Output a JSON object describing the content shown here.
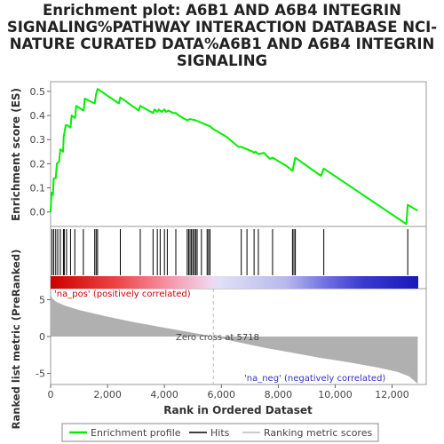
{
  "title_lines": [
    "Enrichment plot: A6B1 AND A6B4 INTEGRIN",
    "SIGNALING%PATHWAY INTERACTION DATABASE NCI-",
    "NATURE CURATED DATA%A6B1 AND A6B4 INTEGRIN",
    "SIGNALING"
  ],
  "colors": {
    "enrichment_line": "#00ee00",
    "hits": "#000000",
    "metric_fill": "#b0b0b0",
    "zero_cross_line": "#bbbbbb",
    "pos_label": "#cc0000",
    "neg_label": "#3333cc"
  },
  "chart_data": [
    {
      "type": "line",
      "name": "enrichment-score-panel",
      "ylabel": "Enrichment score (ES)",
      "xlim": [
        0,
        13200
      ],
      "ylim": [
        -0.06,
        0.54
      ],
      "yticks": [
        0.0,
        0.1,
        0.2,
        0.3,
        0.4,
        0.5
      ],
      "ytick_labels": [
        "0.0",
        "0.1",
        "0.2",
        "0.3",
        "0.4",
        "0.5"
      ],
      "grid": false,
      "series": [
        {
          "name": "Enrichment profile",
          "x": [
            0,
            30,
            80,
            110,
            180,
            220,
            300,
            340,
            440,
            460,
            530,
            580,
            700,
            740,
            860,
            900,
            1160,
            1200,
            1550,
            1600,
            1650,
            2400,
            2450,
            3100,
            3150,
            3600,
            3650,
            3750,
            3800,
            3900,
            4000,
            4050,
            4150,
            4300,
            4400,
            4500,
            4800,
            4900,
            5100,
            5300,
            5500,
            5600,
            5700,
            6200,
            6600,
            6700,
            6900,
            7100,
            7150,
            7200,
            7300,
            7500,
            7700,
            7800,
            8300,
            8500,
            8550,
            8600,
            9500,
            9600,
            12500,
            12550,
            12900
          ],
          "y": [
            0.0,
            0.08,
            0.07,
            0.14,
            0.14,
            0.2,
            0.21,
            0.26,
            0.25,
            0.31,
            0.36,
            0.36,
            0.35,
            0.4,
            0.39,
            0.44,
            0.42,
            0.47,
            0.45,
            0.49,
            0.51,
            0.45,
            0.475,
            0.42,
            0.44,
            0.41,
            0.425,
            0.415,
            0.425,
            0.415,
            0.425,
            0.415,
            0.42,
            0.41,
            0.41,
            0.4,
            0.38,
            0.385,
            0.38,
            0.37,
            0.36,
            0.355,
            0.345,
            0.31,
            0.27,
            0.27,
            0.26,
            0.25,
            0.245,
            0.25,
            0.24,
            0.245,
            0.22,
            0.225,
            0.19,
            0.17,
            0.2,
            0.225,
            0.15,
            0.18,
            -0.05,
            0.03,
            0.005
          ]
        }
      ]
    },
    {
      "type": "scatter",
      "name": "hits-panel",
      "legend_label": "Hits",
      "hits_x": [
        50,
        110,
        180,
        250,
        340,
        450,
        480,
        560,
        700,
        850,
        1150,
        1550,
        1600,
        1650,
        2450,
        3150,
        3600,
        3750,
        3850,
        4000,
        4100,
        4400,
        4800,
        4850,
        4900,
        4950,
        5000,
        5050,
        5100,
        5150,
        5300,
        5500,
        5550,
        5600,
        6700,
        6900,
        7150,
        7300,
        7800,
        8500,
        8550,
        8600,
        9600,
        12550
      ]
    },
    {
      "type": "area",
      "name": "ranked-metric-panel",
      "xlabel": "Rank in Ordered Dataset",
      "ylabel": "Ranked list metric (PreRanked)",
      "xlim": [
        0,
        13200
      ],
      "ylim": [
        -6.5,
        6.5
      ],
      "xticks": [
        0,
        2000,
        4000,
        6000,
        8000,
        10000,
        12000
      ],
      "xtick_labels": [
        "0",
        "2,000",
        "4,000",
        "6,000",
        "8,000",
        "10,000",
        "12,000"
      ],
      "yticks": [
        -5,
        0,
        5
      ],
      "ytick_labels": [
        "-5",
        "0",
        "5"
      ],
      "zero_cross_label": "Zero cross at 5718",
      "zero_cross_rank": 5718,
      "pos_label": "'na_pos' (positively correlated)",
      "neg_label": "'na_neg' (negatively correlated)",
      "series": [
        {
          "name": "Ranking metric scores",
          "x": [
            0,
            50,
            200,
            500,
            1000,
            2000,
            3000,
            4000,
            5000,
            5718,
            6500,
            7500,
            8500,
            9500,
            10500,
            11500,
            12200,
            12600,
            12900
          ],
          "y": [
            5.8,
            5.2,
            4.7,
            4.2,
            3.6,
            2.7,
            1.9,
            1.2,
            0.5,
            0.0,
            -0.7,
            -1.5,
            -2.2,
            -2.9,
            -3.5,
            -4.2,
            -4.8,
            -5.4,
            -6.4
          ]
        }
      ]
    }
  ],
  "legend": {
    "items": [
      "Enrichment profile",
      "Hits",
      "Ranking metric scores"
    ]
  }
}
